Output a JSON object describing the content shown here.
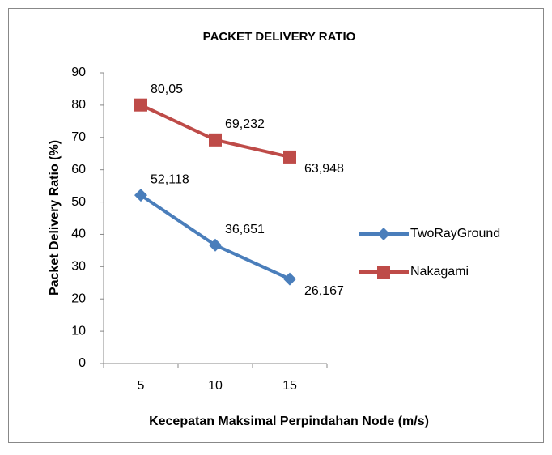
{
  "chart_data": {
    "type": "line",
    "title": "PACKET DELIVERY RATIO",
    "x_label": "Kecepatan Maksimal Perpindahan Node (m/s)",
    "y_label": "Packet Delivery Ratio (%)",
    "categories": [
      "5",
      "10",
      "15"
    ],
    "series": [
      {
        "name": "TwoRayGround",
        "color": "#4a7ebb",
        "marker": "diamond",
        "values": [
          52.118,
          36.651,
          26.167
        ],
        "value_labels": [
          "52,118",
          "36,651",
          "26,167"
        ]
      },
      {
        "name": "Nakagami",
        "color": "#be4b48",
        "marker": "square",
        "values": [
          80.05,
          69.232,
          63.948
        ],
        "value_labels": [
          "80,05",
          "69,232",
          "63,948"
        ]
      }
    ],
    "ylim": [
      0,
      90
    ],
    "yticks": [
      0,
      10,
      20,
      30,
      40,
      50,
      60,
      70,
      80,
      90
    ],
    "legend": "right"
  }
}
